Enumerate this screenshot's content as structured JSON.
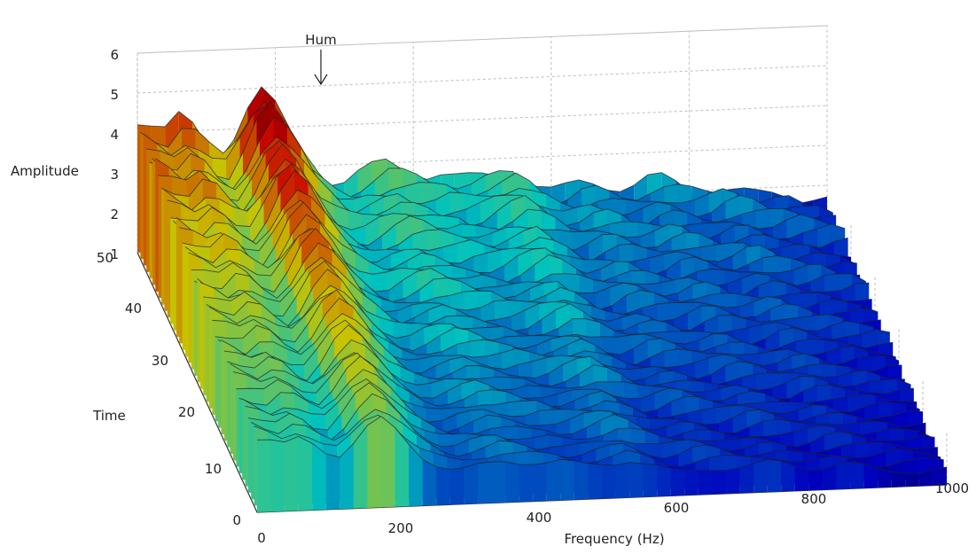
{
  "chart_data": {
    "type": "surface",
    "xlabel": "Frequency (Hz)",
    "ylabel": "Time",
    "zlabel": "Amplitude",
    "x_ticks": [
      0,
      200,
      400,
      600,
      800,
      1000
    ],
    "y_ticks": [
      0,
      10,
      20,
      30,
      40,
      50
    ],
    "z_ticks": [
      1,
      2,
      3,
      4,
      5,
      6
    ],
    "xlim": [
      0,
      1000
    ],
    "ylim": [
      0,
      50
    ],
    "zlim": [
      1,
      6
    ],
    "grid": true,
    "colormap": "jet",
    "annotations": [
      {
        "text": "Hum",
        "x": 250,
        "z": 5.1
      }
    ],
    "frequency": [
      0,
      20,
      40,
      60,
      80,
      100,
      120,
      140,
      160,
      180,
      200,
      220,
      240,
      260,
      280,
      300,
      320,
      340,
      360,
      380,
      400,
      420,
      440,
      460,
      480,
      500,
      520,
      540,
      560,
      580,
      600,
      620,
      640,
      660,
      680,
      700,
      720,
      740,
      760,
      780,
      800,
      820,
      840,
      860,
      880,
      900,
      920,
      940,
      960,
      980,
      1000
    ],
    "amplitude_profile": [
      4.3,
      4.1,
      3.9,
      4.2,
      4.0,
      3.6,
      3.4,
      3.9,
      4.6,
      5.0,
      4.6,
      4.0,
      3.4,
      3.0,
      2.7,
      2.6,
      2.7,
      2.8,
      2.9,
      2.8,
      2.7,
      2.6,
      2.6,
      2.5,
      2.5,
      2.6,
      2.7,
      2.8,
      2.6,
      2.4,
      2.2,
      2.2,
      2.3,
      2.3,
      2.2,
      2.1,
      2.1,
      2.2,
      2.2,
      2.1,
      2.0,
      2.0,
      2.1,
      2.1,
      2.0,
      1.9,
      1.9,
      1.9,
      1.8,
      1.8,
      1.7
    ]
  }
}
